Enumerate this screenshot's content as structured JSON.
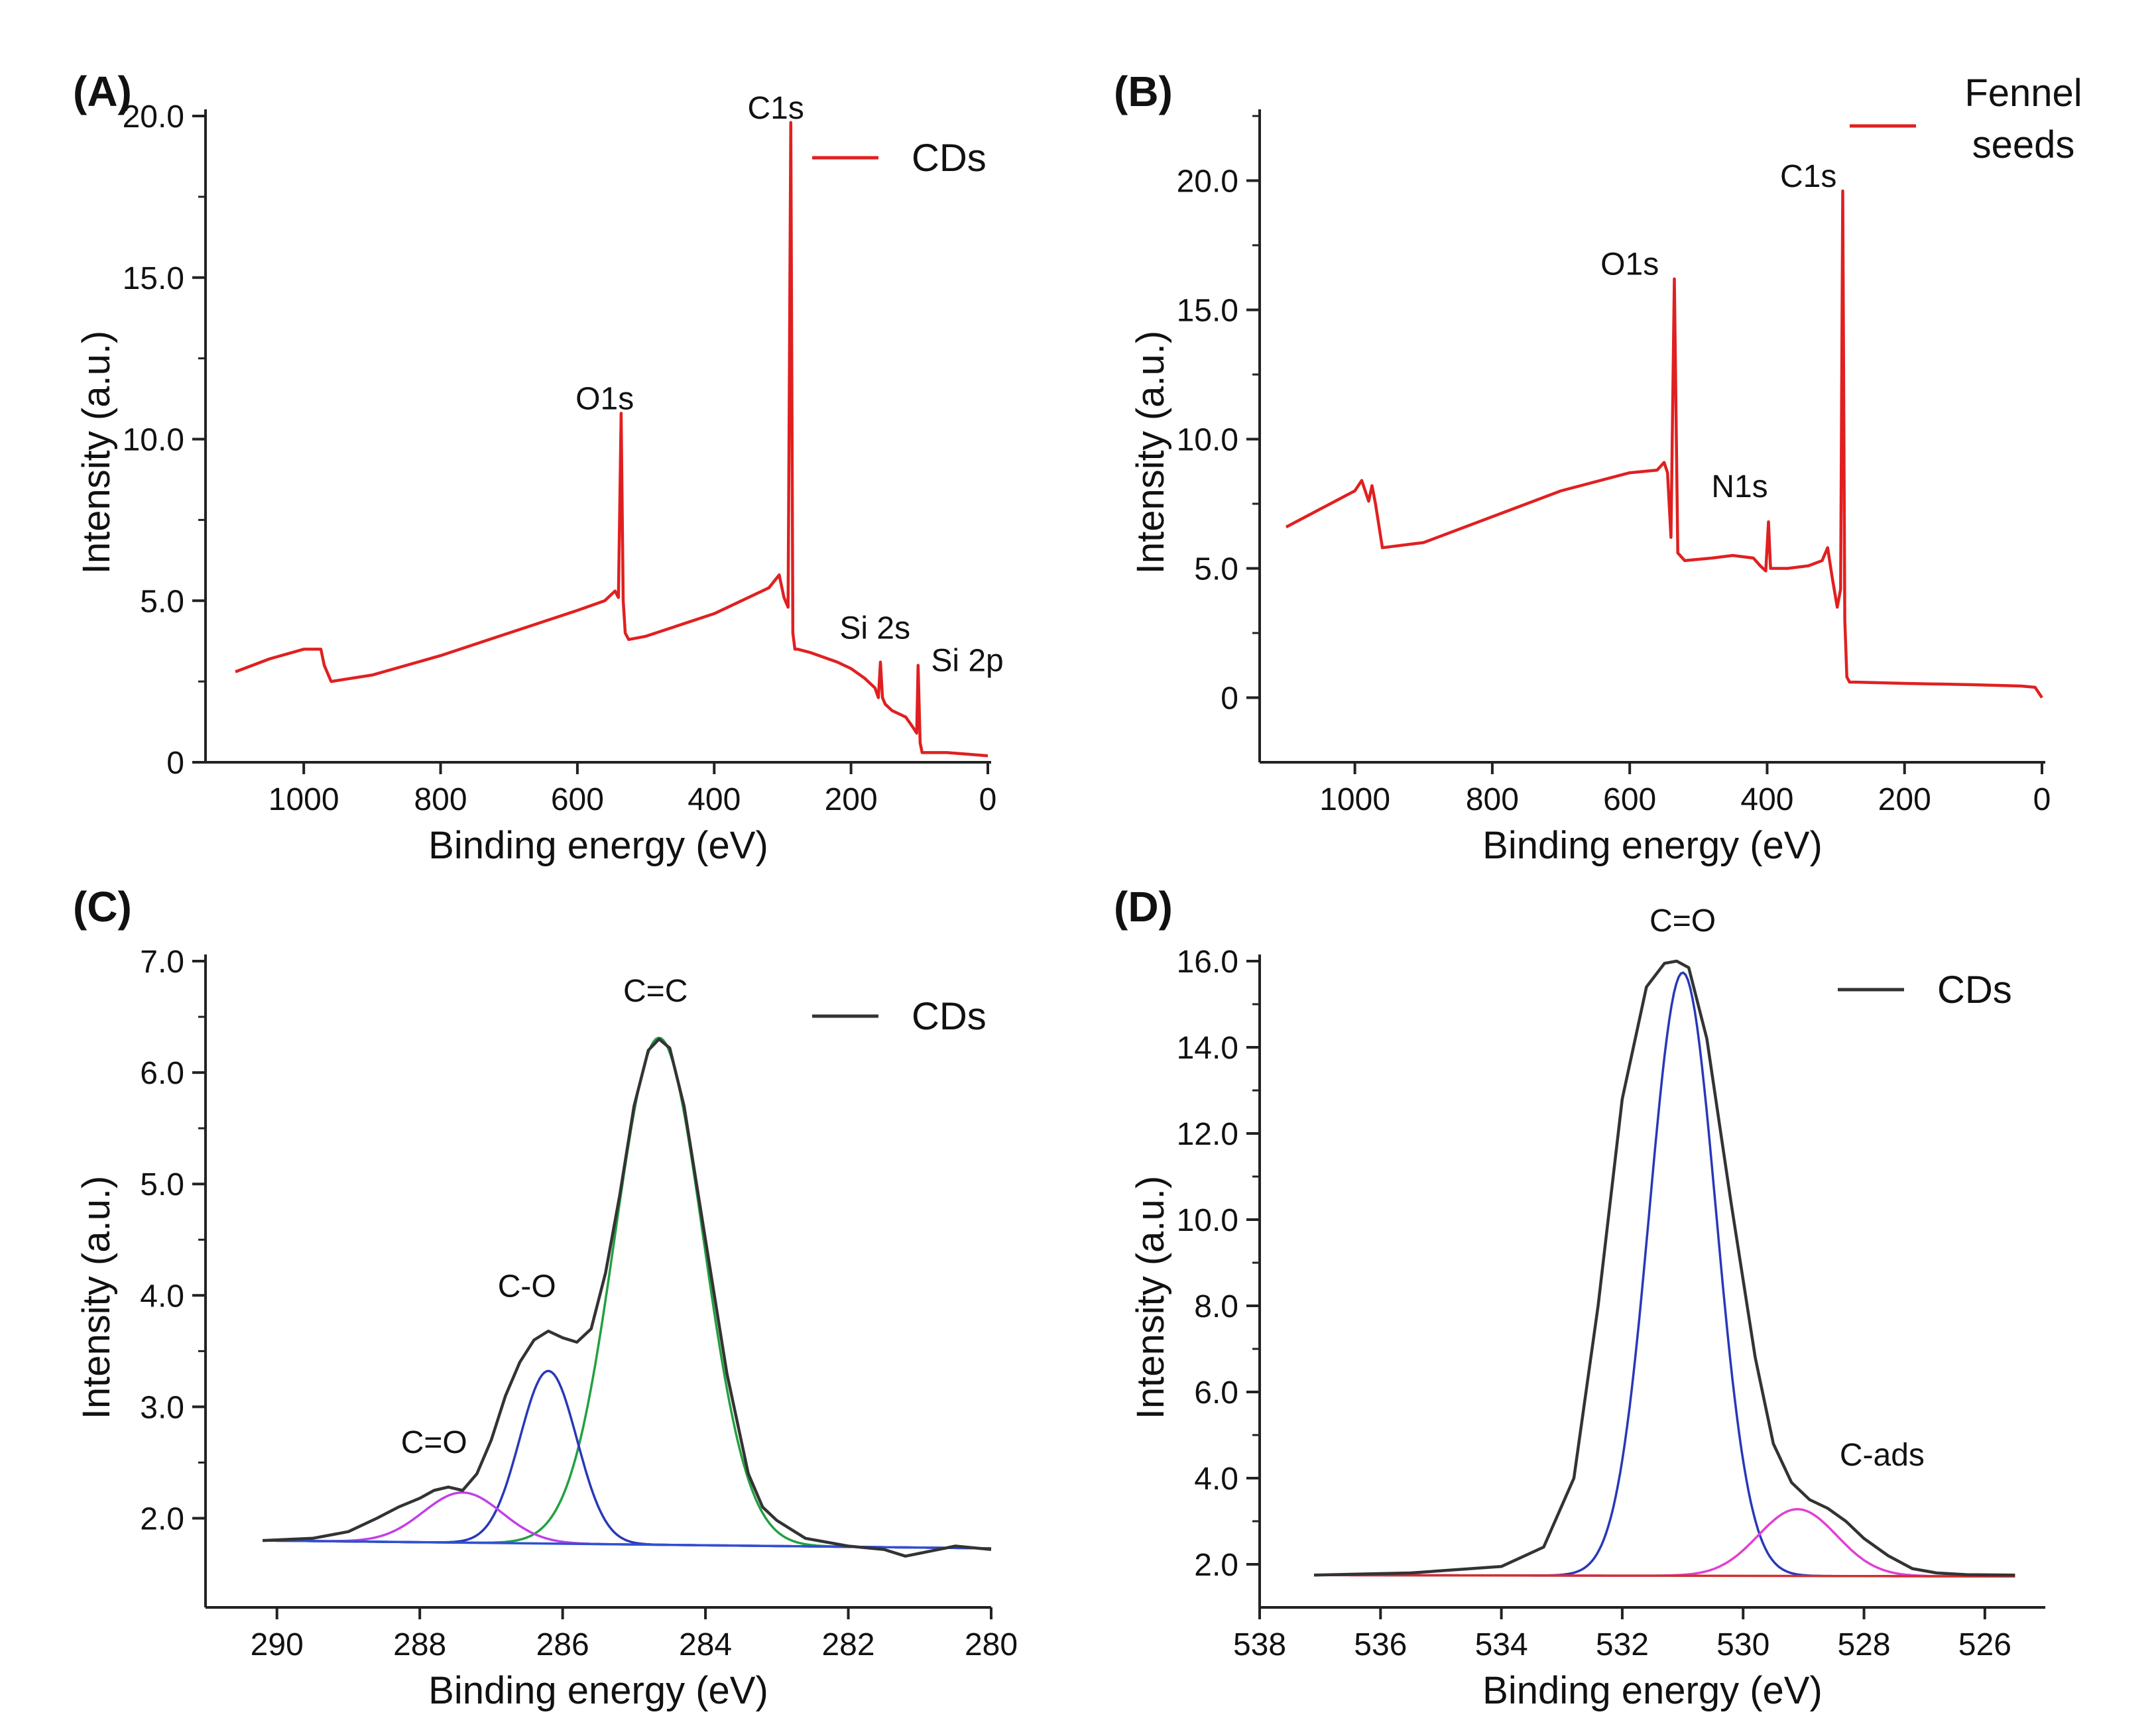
{
  "chart_data": [
    {
      "panel": "(A)",
      "type": "line",
      "xlabel": "Binding energy (eV)",
      "ylabel": "Intensity (a.u.)",
      "xlim": [
        1100,
        0
      ],
      "ylim": [
        0,
        20.0
      ],
      "xticks": [
        1000,
        800,
        600,
        400,
        200,
        0
      ],
      "yticks": [
        0,
        5.0,
        10.0,
        15.0,
        20.0
      ],
      "ytick_labels": [
        "0",
        "5.0",
        "10.0",
        "15.0",
        "20.0"
      ],
      "legend": "CDs",
      "legend_loc": "top-right",
      "series": [
        {
          "name": "CDs",
          "color": "#e02020",
          "x": [
            1100,
            1050,
            1000,
            975,
            970,
            960,
            900,
            800,
            700,
            600,
            560,
            545,
            540,
            536,
            533,
            530,
            525,
            500,
            400,
            320,
            305,
            298,
            292,
            288,
            285,
            282,
            278,
            260,
            220,
            200,
            180,
            165,
            160,
            157,
            154,
            150,
            140,
            120,
            110,
            104,
            102,
            99,
            96,
            90,
            60,
            30,
            0
          ],
          "y": [
            2.8,
            3.2,
            3.5,
            3.5,
            3.0,
            2.5,
            2.7,
            3.3,
            4.0,
            4.7,
            5.0,
            5.3,
            5.1,
            10.8,
            5.0,
            4.0,
            3.8,
            3.9,
            4.6,
            5.4,
            5.8,
            5.1,
            4.8,
            19.8,
            4.0,
            3.5,
            3.5,
            3.4,
            3.1,
            2.9,
            2.6,
            2.3,
            2.0,
            3.1,
            2.0,
            1.8,
            1.6,
            1.4,
            1.1,
            0.9,
            3.0,
            0.6,
            0.3,
            0.3,
            0.3,
            0.25,
            0.2
          ]
        }
      ],
      "annotations": [
        {
          "text": "O1s",
          "x": 560,
          "y": 10.8
        },
        {
          "text": "C1s",
          "x": 310,
          "y": 19.8
        },
        {
          "text": "Si 2s",
          "x": 165,
          "y": 3.7
        },
        {
          "text": "Si 2p",
          "x": 30,
          "y": 2.7
        }
      ]
    },
    {
      "panel": "(B)",
      "type": "line",
      "xlabel": "Binding energy (eV)",
      "ylabel": "Intensity (a.u.)",
      "xlim": [
        1100,
        0
      ],
      "ylim": [
        -2.5,
        22.5
      ],
      "xticks": [
        1000,
        800,
        600,
        400,
        200,
        0
      ],
      "yticks": [
        0,
        5.0,
        10.0,
        15.0,
        20.0
      ],
      "ytick_labels": [
        "0",
        "5.0",
        "10.0",
        "15.0",
        "20.0"
      ],
      "legend": "Fennel seeds",
      "legend_lines": [
        "Fennel",
        "seeds"
      ],
      "legend_loc": "top-right",
      "series": [
        {
          "name": "Fennel seeds",
          "color": "#e02020",
          "x": [
            1100,
            1050,
            1000,
            990,
            980,
            975,
            970,
            960,
            900,
            800,
            700,
            600,
            560,
            550,
            545,
            540,
            535,
            530,
            520,
            480,
            450,
            420,
            410,
            402,
            398,
            395,
            390,
            370,
            340,
            320,
            312,
            305,
            298,
            293,
            290,
            287,
            284,
            280,
            270,
            200,
            100,
            30,
            10,
            0
          ],
          "y": [
            6.6,
            7.3,
            8.0,
            8.4,
            7.6,
            8.2,
            7.5,
            5.8,
            6.0,
            7.0,
            8.0,
            8.7,
            8.8,
            9.1,
            8.7,
            6.2,
            16.2,
            5.6,
            5.3,
            5.4,
            5.5,
            5.4,
            5.1,
            4.9,
            6.8,
            5.0,
            5.0,
            5.0,
            5.1,
            5.3,
            5.8,
            4.6,
            3.5,
            4.2,
            19.6,
            3.0,
            0.8,
            0.6,
            0.6,
            0.55,
            0.5,
            0.45,
            0.4,
            0.0
          ]
        }
      ],
      "annotations": [
        {
          "text": "O1s",
          "x": 600,
          "y": 16.2
        },
        {
          "text": "N1s",
          "x": 440,
          "y": 7.6
        },
        {
          "text": "C1s",
          "x": 340,
          "y": 19.6
        }
      ]
    },
    {
      "panel": "(C)",
      "type": "line",
      "xlabel": "Binding energy (eV)",
      "ylabel": "Intensity (a.u.)",
      "xlim": [
        291,
        280
      ],
      "ylim": [
        1.2,
        7.0
      ],
      "xticks": [
        290,
        288,
        286,
        284,
        282,
        280
      ],
      "yticks": [
        2.0,
        3.0,
        4.0,
        5.0,
        6.0,
        7.0
      ],
      "ytick_labels": [
        "2.0",
        "3.0",
        "4.0",
        "5.0",
        "6.0",
        "7.0"
      ],
      "legend": "CDs",
      "legend_loc": "top-right",
      "series": [
        {
          "name": "CDs",
          "color": "#333333",
          "x": [
            290.2,
            289.5,
            289.0,
            288.6,
            288.3,
            288.0,
            287.8,
            287.6,
            287.4,
            287.2,
            287.0,
            286.8,
            286.6,
            286.4,
            286.2,
            286.0,
            285.8,
            285.6,
            285.4,
            285.2,
            285.0,
            284.8,
            284.65,
            284.5,
            284.3,
            284.0,
            283.7,
            283.4,
            283.2,
            283.0,
            282.6,
            282.0,
            281.5,
            281.2,
            280.5,
            280.0
          ],
          "y": [
            1.8,
            1.82,
            1.88,
            2.0,
            2.1,
            2.18,
            2.25,
            2.28,
            2.25,
            2.4,
            2.7,
            3.1,
            3.4,
            3.6,
            3.68,
            3.62,
            3.58,
            3.7,
            4.2,
            4.9,
            5.7,
            6.2,
            6.3,
            6.22,
            5.7,
            4.5,
            3.3,
            2.4,
            2.1,
            1.98,
            1.82,
            1.75,
            1.72,
            1.66,
            1.75,
            1.72
          ]
        },
        {
          "name": "C=C fit",
          "color": "#22a040",
          "center": 284.65,
          "height": 4.55,
          "sigma": 0.62
        },
        {
          "name": "C-O fit",
          "color": "#2838b8",
          "center": 286.2,
          "height": 1.55,
          "sigma": 0.4
        },
        {
          "name": "C=O fit",
          "color": "#c040e8",
          "center": 287.4,
          "height": 0.45,
          "sigma": 0.55
        },
        {
          "name": "baseline",
          "color": "#3050d0",
          "x": [
            290.2,
            280.0
          ],
          "y": [
            1.8,
            1.73
          ]
        }
      ],
      "annotations": [
        {
          "text": "C=O",
          "x": 287.8,
          "y": 2.55
        },
        {
          "text": "C-O",
          "x": 286.5,
          "y": 3.95
        },
        {
          "text": "C=C",
          "x": 284.7,
          "y": 6.6
        }
      ]
    },
    {
      "panel": "(D)",
      "type": "line",
      "xlabel": "Binding energy (eV)",
      "ylabel": "Intensity (a.u.)",
      "xlim": [
        538,
        525
      ],
      "ylim": [
        1.0,
        16.0
      ],
      "xticks": [
        538,
        536,
        534,
        532,
        530,
        528,
        526
      ],
      "yticks": [
        2.0,
        4.0,
        6.0,
        8.0,
        10.0,
        12.0,
        14.0,
        16.0
      ],
      "ytick_labels": [
        "2.0",
        "4.0",
        "6.0",
        "8.0",
        "10.0",
        "12.0",
        "14.0",
        "16.0"
      ],
      "legend": "CDs",
      "legend_loc": "top-right",
      "series": [
        {
          "name": "CDs",
          "color": "#333333",
          "x": [
            537.1,
            535.5,
            534.0,
            533.3,
            532.8,
            532.4,
            532.0,
            531.6,
            531.3,
            531.1,
            530.9,
            530.6,
            530.2,
            529.8,
            529.5,
            529.2,
            528.9,
            528.6,
            528.3,
            528.0,
            527.6,
            527.2,
            526.8,
            526.3,
            525.5
          ],
          "y": [
            1.75,
            1.8,
            1.95,
            2.4,
            4.0,
            8.0,
            12.8,
            15.4,
            15.95,
            16.0,
            15.85,
            14.2,
            10.4,
            6.8,
            4.8,
            3.9,
            3.5,
            3.3,
            3.0,
            2.6,
            2.2,
            1.9,
            1.8,
            1.76,
            1.75
          ]
        },
        {
          "name": "C=O fit",
          "color": "#2838b8",
          "center": 531.0,
          "height": 14.0,
          "sigma": 0.55
        },
        {
          "name": "C-ads fit",
          "color": "#e040d0",
          "center": 529.1,
          "height": 1.55,
          "sigma": 0.65
        },
        {
          "name": "baseline",
          "color": "#d03030",
          "x": [
            537.1,
            525.5
          ],
          "y": [
            1.75,
            1.72
          ]
        }
      ],
      "annotations": [
        {
          "text": "C=O",
          "x": 531.0,
          "y": 16.6
        },
        {
          "text": "C-ads",
          "x": 527.7,
          "y": 4.2
        }
      ]
    }
  ]
}
